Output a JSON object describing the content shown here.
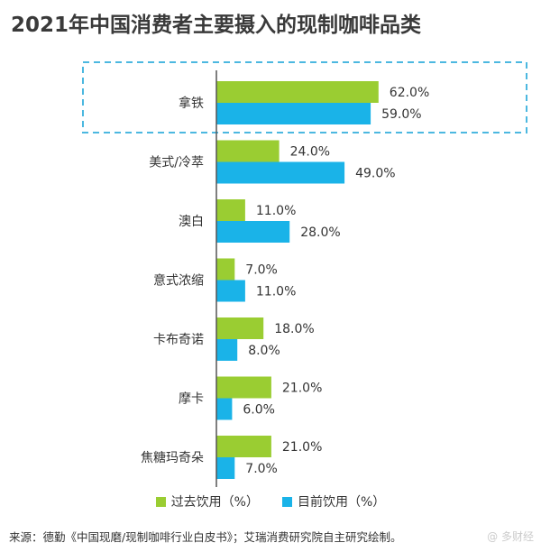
{
  "title": "2021年中国消费者主要摄入的现制咖啡品类",
  "source": "来源：德勤《中国现磨/现制咖啡行业白皮书》；艾瑞消费研究院自主研究绘制。",
  "watermark": "@ 多财经",
  "colors": {
    "series_past": "#9acd32",
    "series_current": "#1ab3e8",
    "highlight_border": "#4cb8e0",
    "axis": "#555555"
  },
  "chart_data": {
    "type": "bar",
    "orientation": "horizontal",
    "title": "2021年中国消费者主要摄入的现制咖啡品类",
    "categories": [
      "拿铁",
      "美式/冷萃",
      "澳白",
      "意式浓缩",
      "卡布奇诺",
      "摩卡",
      "焦糖玛奇朵"
    ],
    "series": [
      {
        "name": "过去饮用（%）",
        "values": [
          62.0,
          24.0,
          11.0,
          7.0,
          18.0,
          21.0,
          21.0
        ]
      },
      {
        "name": "目前饮用（%）",
        "values": [
          59.0,
          49.0,
          28.0,
          11.0,
          8.0,
          6.0,
          7.0
        ]
      }
    ],
    "value_labels": [
      [
        "62.0%",
        "24.0%",
        "11.0%",
        "7.0%",
        "18.0%",
        "21.0%",
        "21.0%"
      ],
      [
        "59.0%",
        "49.0%",
        "28.0%",
        "11.0%",
        "8.0%",
        "6.0%",
        "7.0%"
      ]
    ],
    "xlim": [
      0,
      100
    ],
    "grid": false,
    "legend": "bottom",
    "highlighted_category": "拿铁"
  }
}
